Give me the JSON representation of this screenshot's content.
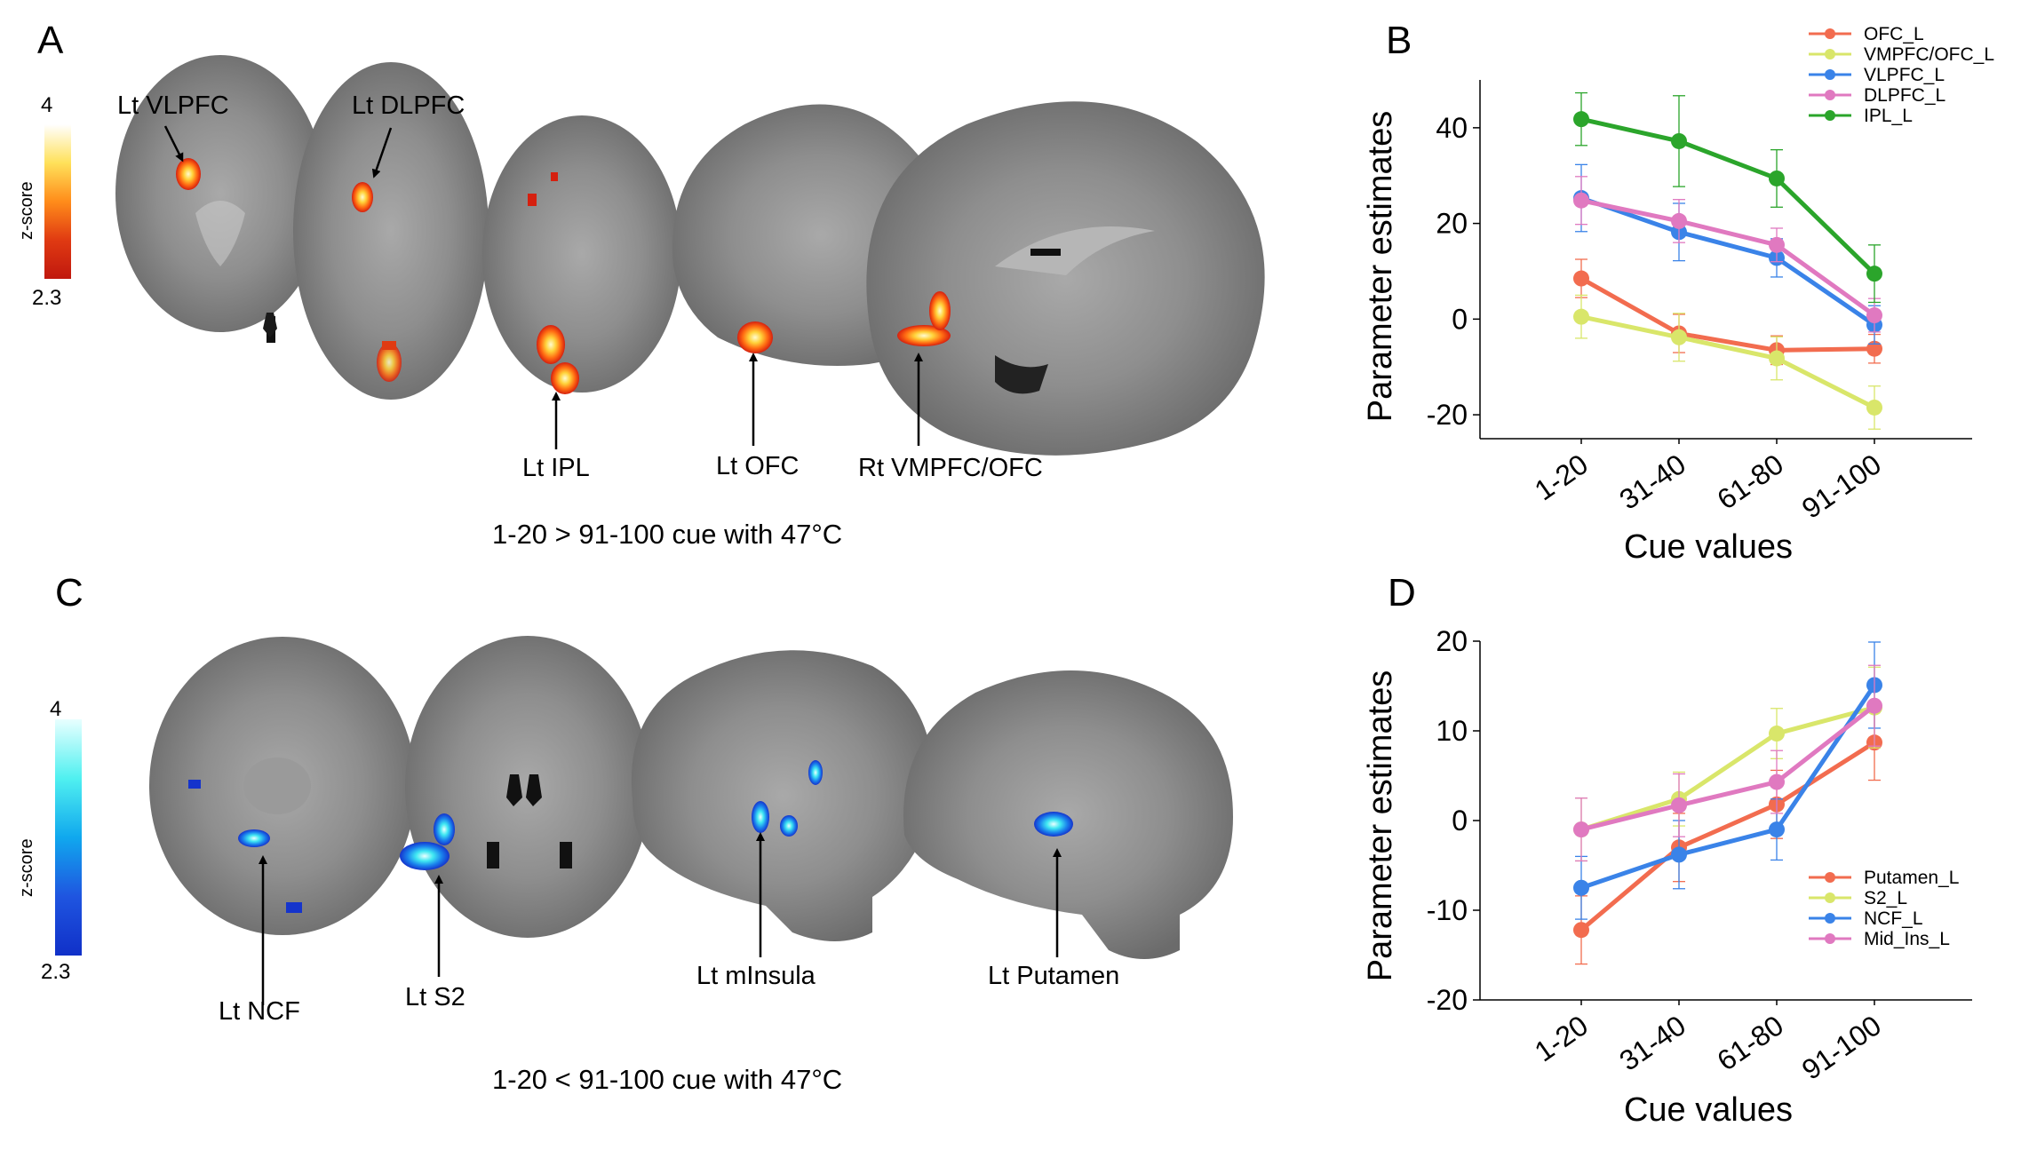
{
  "panels": {
    "A": {
      "letter": "A",
      "caption": "1-20 > 91-100 cue with 47°C",
      "colorbar": {
        "title": "z-score",
        "max_label": "4",
        "min_label": "2.3",
        "colors": [
          "#ffffff",
          "#ffe15a",
          "#ff8c1a",
          "#e03a12",
          "#c0180e"
        ]
      },
      "labels": [
        "Lt VLPFC",
        "Lt DLPFC",
        "Lt IPL",
        "Lt OFC",
        "Rt VMPFC/OFC"
      ]
    },
    "B": {
      "letter": "B"
    },
    "C": {
      "letter": "C",
      "caption": "1-20 < 91-100 cue with 47°C",
      "colorbar": {
        "title": "z-score",
        "max_label": "4",
        "min_label": "2.3",
        "colors": [
          "#e8ffff",
          "#50f0f0",
          "#10a8ee",
          "#1f55e0",
          "#1030c8"
        ]
      },
      "labels": [
        "Lt NCF",
        "Lt S2",
        "Lt mInsula",
        "Lt Putamen"
      ]
    },
    "D": {
      "letter": "D"
    }
  },
  "chart_data": [
    {
      "panel": "B",
      "type": "line",
      "xlabel": "Cue values",
      "ylabel": "Parameter estimates",
      "categories": [
        "1-20",
        "31-40",
        "61-80",
        "91-100"
      ],
      "ylim": [
        -25,
        50
      ],
      "yticks": [
        -20,
        0,
        20,
        40
      ],
      "legend_position": "top-right",
      "series": [
        {
          "name": "OFC_L",
          "color": "#f26c4f",
          "values": [
            8.5,
            -3,
            -6.5,
            -6.2
          ],
          "errors": [
            4,
            4,
            3,
            3
          ]
        },
        {
          "name": "VMPFC/OFC_L",
          "color": "#d9e66a",
          "values": [
            0.5,
            -3.8,
            -8.2,
            -18.5
          ],
          "errors": [
            4.5,
            5,
            4.5,
            4.5
          ]
        },
        {
          "name": "VLPFC_L",
          "color": "#3a83e8",
          "values": [
            25.3,
            18.2,
            12.8,
            -1.2
          ],
          "errors": [
            7,
            6,
            4,
            4
          ]
        },
        {
          "name": "DLPFC_L",
          "color": "#e079c0",
          "values": [
            24.8,
            20.5,
            15.5,
            0.8
          ],
          "errors": [
            5,
            4.5,
            3.5,
            3.5
          ]
        },
        {
          "name": "IPL_L",
          "color": "#2ba52b",
          "values": [
            41.8,
            37.2,
            29.4,
            9.5
          ],
          "errors": [
            5.5,
            9.5,
            6,
            6
          ]
        }
      ]
    },
    {
      "panel": "D",
      "type": "line",
      "xlabel": "Cue values",
      "ylabel": "Parameter estimates",
      "categories": [
        "1-20",
        "31-40",
        "61-80",
        "91-100"
      ],
      "ylim": [
        -20,
        20
      ],
      "yticks": [
        -20,
        -10,
        0,
        10,
        20
      ],
      "legend_position": "bottom-right",
      "series": [
        {
          "name": "Putamen_L",
          "color": "#f26c4f",
          "values": [
            -12.2,
            -3,
            1.8,
            8.7
          ],
          "errors": [
            3.8,
            3.8,
            3.8,
            4.2
          ]
        },
        {
          "name": "S2_L",
          "color": "#d9e66a",
          "values": [
            -1,
            2.4,
            9.7,
            12.6
          ],
          "errors": [
            3.5,
            3,
            2.8,
            4.5
          ]
        },
        {
          "name": "NCF_L",
          "color": "#3a83e8",
          "values": [
            -7.5,
            -3.8,
            -1,
            15.1
          ],
          "errors": [
            3.5,
            3.8,
            3.4,
            4.8
          ]
        },
        {
          "name": "Mid_Ins_L",
          "color": "#e079c0",
          "values": [
            -1,
            1.7,
            4.3,
            12.8
          ],
          "errors": [
            3.5,
            3.5,
            3.5,
            4.5
          ]
        }
      ]
    }
  ]
}
